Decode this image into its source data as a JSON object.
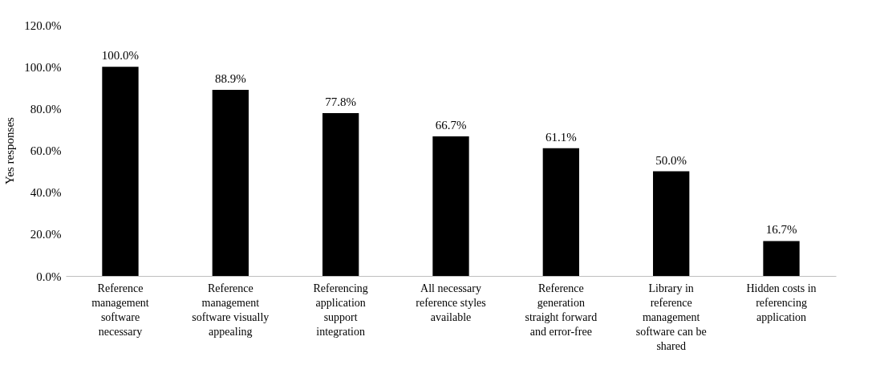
{
  "chart_data": {
    "type": "bar",
    "ylabel": "Yes responses",
    "categories": [
      "Reference management software necessary",
      "Reference management software visually appealing",
      "Referencing application support integration",
      "All necessary reference styles available",
      "Reference generation straight forward and error-free",
      "Library in reference management software can be shared",
      "Hidden costs in referencing application"
    ],
    "values": [
      100,
      88.9,
      77.8,
      66.7,
      61.1,
      50,
      16.7
    ],
    "value_labels": [
      "100.0%",
      "88.9%",
      "77.8%",
      "66.7%",
      "61.1%",
      "50.0%",
      "16.7%"
    ],
    "color": "#000000",
    "ylim": [
      0,
      120
    ],
    "yticks": [
      {
        "value": 0,
        "label": "0.0%"
      },
      {
        "value": 20,
        "label": "20.0%"
      },
      {
        "value": 40,
        "label": "40.0%"
      },
      {
        "value": 60,
        "label": "60.0%"
      },
      {
        "value": 80,
        "label": "80.0%"
      },
      {
        "value": 100,
        "label": "100.0%"
      },
      {
        "value": 120,
        "label": "120.0%"
      }
    ],
    "grid": false
  }
}
